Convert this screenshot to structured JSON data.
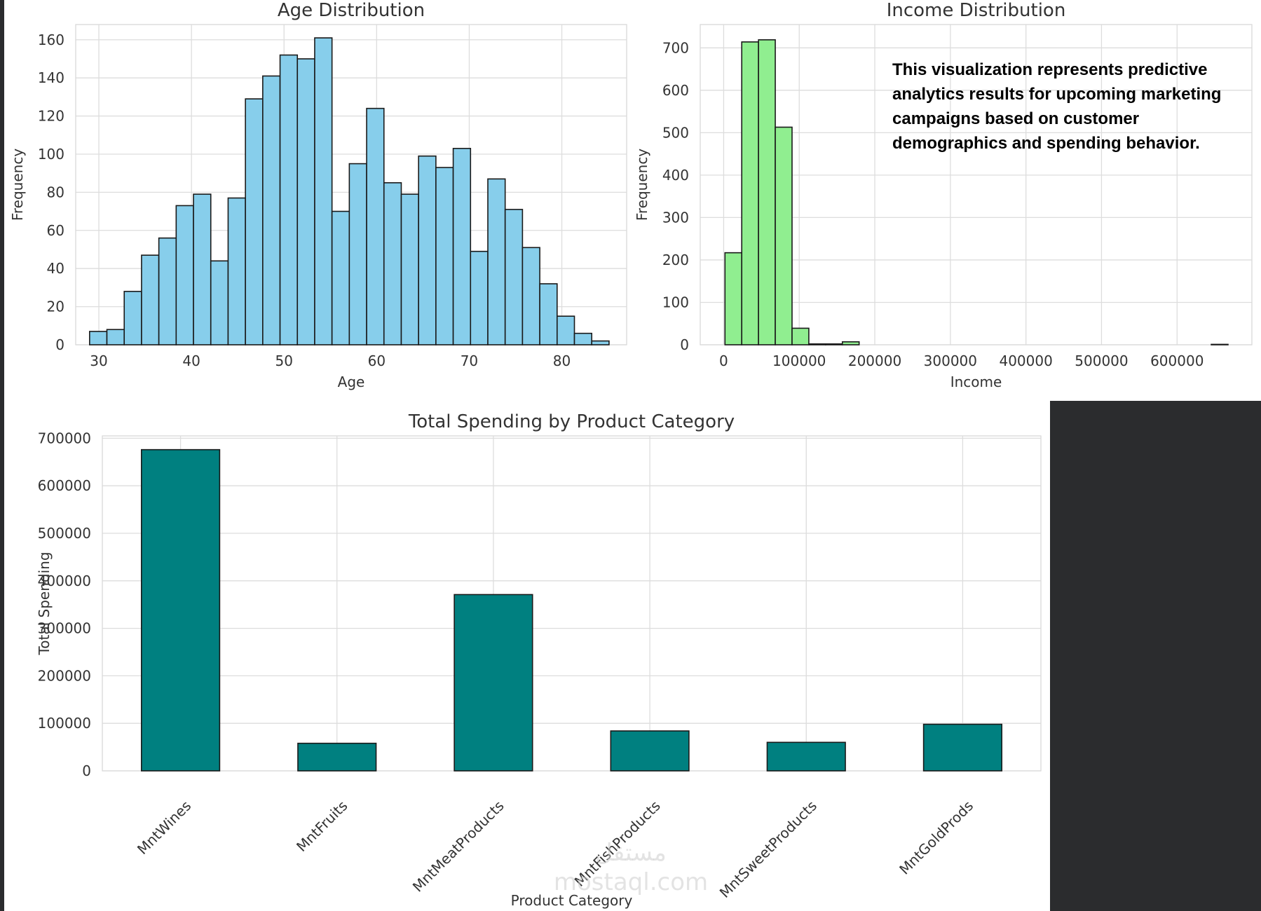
{
  "chart_data": [
    {
      "id": "age",
      "type": "bar",
      "subtype": "histogram",
      "title": "Age Distribution",
      "xlabel": "Age",
      "ylabel": "Frequency",
      "bin_start": 29,
      "bin_width": 1.87,
      "values": [
        7,
        8,
        28,
        47,
        56,
        73,
        79,
        44,
        77,
        129,
        141,
        152,
        150,
        161,
        70,
        95,
        124,
        85,
        79,
        99,
        93,
        103,
        49,
        87,
        71,
        51,
        32,
        15,
        6,
        2
      ],
      "xlim": [
        27.5,
        87
      ],
      "ylim": [
        0,
        168
      ],
      "xticks": [
        30,
        40,
        50,
        60,
        70,
        80
      ],
      "yticks": [
        0,
        20,
        40,
        60,
        80,
        100,
        120,
        140,
        160
      ],
      "color": "#87ceeb",
      "edge_color": "#1a1a1a",
      "grid": true
    },
    {
      "id": "income",
      "type": "bar",
      "subtype": "histogram",
      "title": "Income Distribution",
      "xlabel": "Income",
      "ylabel": "Frequency",
      "bin_start": 1730,
      "bin_width": 22190,
      "values": [
        217,
        714,
        719,
        513,
        39,
        2,
        2,
        7,
        0,
        0,
        0,
        0,
        0,
        0,
        0,
        0,
        0,
        0,
        0,
        0,
        0,
        0,
        0,
        0,
        0,
        0,
        0,
        0,
        0,
        1
      ],
      "xlim": [
        -31000,
        699000
      ],
      "ylim": [
        0,
        755
      ],
      "xticks": [
        0,
        100000,
        200000,
        300000,
        400000,
        500000,
        600000
      ],
      "yticks": [
        0,
        100,
        200,
        300,
        400,
        500,
        600,
        700
      ],
      "color": "#90ee90",
      "edge_color": "#1a1a1a",
      "grid": true,
      "annotation": [
        "This visualization represents predictive",
        "analytics results for upcoming marketing",
        "campaigns based on customer",
        "demographics and spending behavior."
      ]
    },
    {
      "id": "spending",
      "type": "bar",
      "title": "Total Spending by Product Category",
      "xlabel": "Product Category",
      "ylabel": "Total Spending",
      "categories": [
        "MntWines",
        "MntFruits",
        "MntMeatProducts",
        "MntFishProducts",
        "MntSweetProducts",
        "MntGoldProds"
      ],
      "values": [
        676000,
        58000,
        371000,
        84000,
        60000,
        98000
      ],
      "ylim": [
        0,
        705000
      ],
      "yticks": [
        0,
        100000,
        200000,
        300000,
        400000,
        500000,
        600000,
        700000
      ],
      "color": "#008080",
      "edge_color": "#1a1a1a",
      "grid": true
    }
  ],
  "watermark": {
    "arabic": "مستقل",
    "latin": "mostaql.com"
  }
}
